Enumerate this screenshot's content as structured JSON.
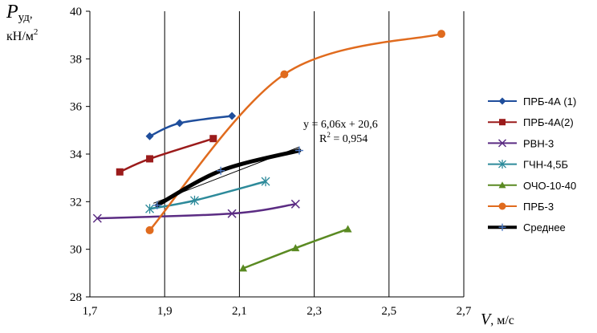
{
  "chart_data": {
    "type": "line",
    "ylabel_symbol": "P",
    "ylabel_sub": "уд",
    "ylabel_suffix": ",",
    "ylabel_unit": "кН/м",
    "ylabel_unit_sup": "2",
    "xlabel_symbol": "V",
    "xlabel_unit": ", м/с",
    "xlim": [
      1.7,
      2.7
    ],
    "ylim": [
      28,
      40
    ],
    "x_ticks": [
      "1,7",
      "1,9",
      "2,1",
      "2,3",
      "2,5",
      "2,7"
    ],
    "y_ticks": [
      "28",
      "30",
      "32",
      "34",
      "36",
      "38",
      "40"
    ],
    "grid": "vertical",
    "legend_position": "right",
    "series": [
      {
        "name": "ПРБ-4А (1)",
        "color": "#1f4e9c",
        "marker": "diamond",
        "x": [
          1.86,
          1.94,
          2.08
        ],
        "y": [
          34.75,
          35.3,
          35.6
        ]
      },
      {
        "name": "ПРБ-4А(2)",
        "color": "#9b1b1b",
        "marker": "square",
        "x": [
          1.78,
          1.86,
          2.03
        ],
        "y": [
          33.25,
          33.8,
          34.65
        ]
      },
      {
        "name": "РВН-3",
        "color": "#5b2c83",
        "marker": "x",
        "x": [
          1.72,
          2.08,
          2.25
        ],
        "y": [
          31.3,
          31.5,
          31.9
        ]
      },
      {
        "name": "ГЧН-4,5Б",
        "color": "#2d8a9a",
        "marker": "star",
        "x": [
          1.86,
          1.98,
          2.17
        ],
        "y": [
          31.7,
          32.05,
          32.85
        ]
      },
      {
        "name": "ОЧО-10-40",
        "color": "#5a8a22",
        "marker": "triangle",
        "x": [
          2.11,
          2.25,
          2.39
        ],
        "y": [
          29.2,
          30.05,
          30.85
        ]
      },
      {
        "name": "ПРБ-3",
        "color": "#e06b1e",
        "marker": "circle",
        "x": [
          1.86,
          2.22,
          2.64
        ],
        "y": [
          30.8,
          37.35,
          39.05
        ]
      },
      {
        "name": "Среднее",
        "color": "#000000",
        "marker": "plus",
        "x": [
          1.88,
          2.05,
          2.26
        ],
        "y": [
          31.85,
          33.3,
          34.15
        ]
      }
    ],
    "trendline": {
      "series": "Среднее",
      "slope": 6.06,
      "intercept": 20.6,
      "x_range": [
        1.87,
        2.26
      ]
    },
    "annotation": {
      "equation": "y = 6,06x + 20,6",
      "r2_prefix": "R",
      "r2_sup": "2",
      "r2_value": " = 0,954"
    }
  }
}
